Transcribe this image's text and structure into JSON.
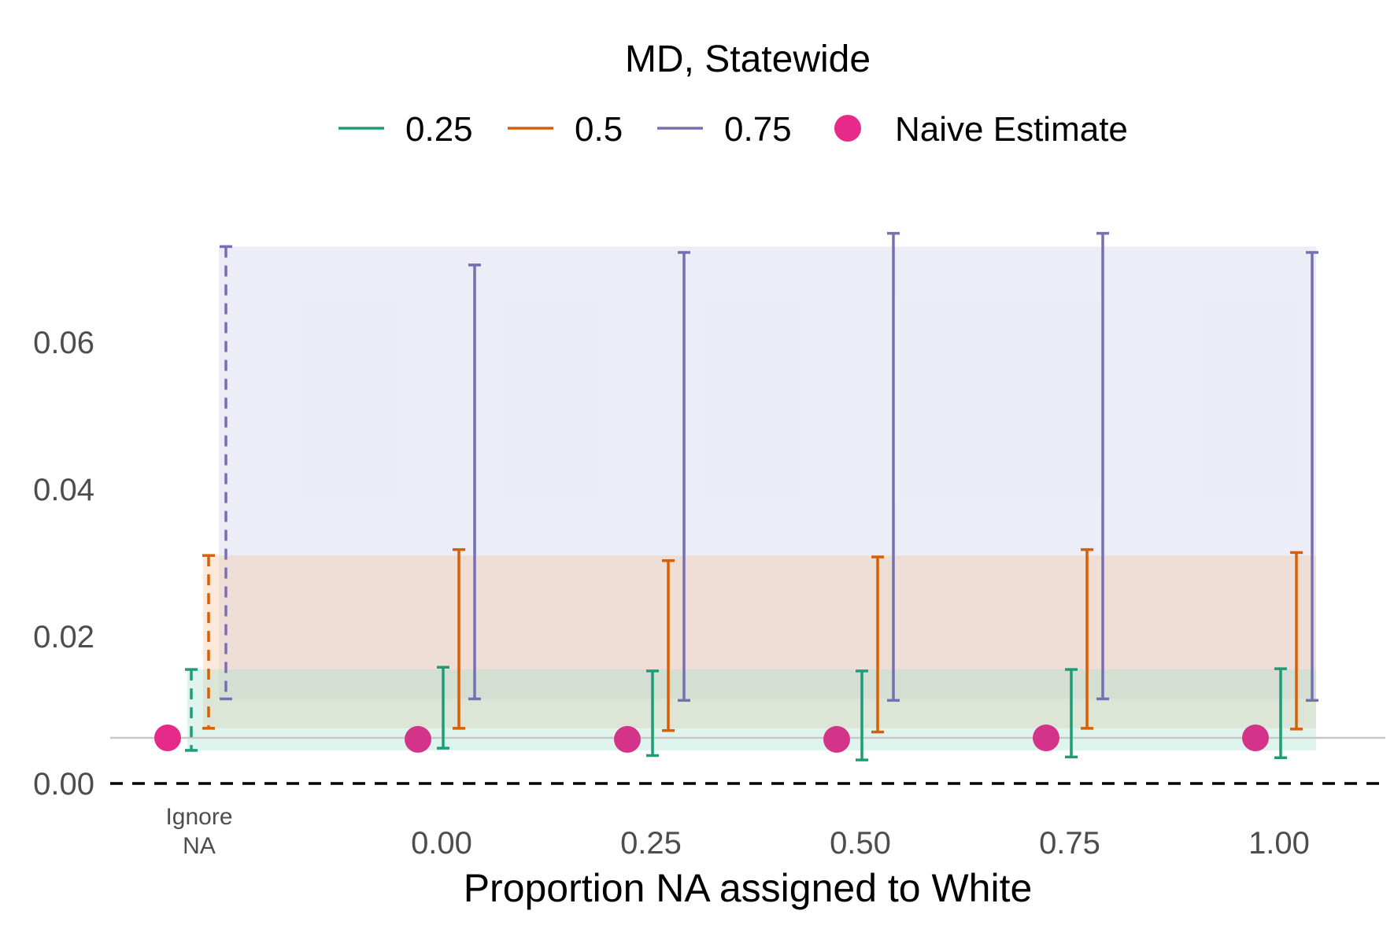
{
  "chart_data": {
    "type": "errorbar",
    "title": "MD, Statewide",
    "xlabel": "Proportion NA assigned to White",
    "ylabel": "",
    "ylim": [
      0,
      0.073
    ],
    "yticks": [
      "0.00",
      "0.02",
      "0.04",
      "0.06"
    ],
    "ytick_values": [
      0,
      0.02,
      0.04,
      0.06
    ],
    "categories": [
      "0.00",
      "0.25",
      "0.50",
      "0.75",
      "1.00"
    ],
    "category_values": [
      0,
      0.25,
      0.5,
      0.75,
      1.0
    ],
    "ignore_na_label": [
      "Ignore",
      "NA"
    ],
    "naive_estimate": 0.0062,
    "reference_lines": [
      {
        "value": 0.0062,
        "style": "solid",
        "color": "#c8c8c8"
      },
      {
        "value": 0,
        "style": "dashed",
        "color": "#000000"
      }
    ],
    "legend": {
      "placement": "top",
      "items": [
        {
          "label": "0.25",
          "color": "#1b9e77",
          "shape": "line"
        },
        {
          "label": "0.5",
          "color": "#d95f02",
          "shape": "line"
        },
        {
          "label": "0.75",
          "color": "#7570b3",
          "shape": "line"
        },
        {
          "label": "Naive Estimate",
          "color": "#e7298a",
          "shape": "dot"
        }
      ]
    },
    "ignore_na": {
      "naive": 0.0062,
      "series": [
        {
          "name": "0.25",
          "low": 0.0045,
          "high": 0.0155
        },
        {
          "name": "0.5",
          "low": 0.0075,
          "high": 0.031
        },
        {
          "name": "0.75",
          "low": 0.0115,
          "high": 0.073
        }
      ]
    },
    "series": [
      {
        "name": "0.25",
        "color": "#1b9e77",
        "low": [
          0.0048,
          0.0038,
          0.0032,
          0.0036,
          0.0035
        ],
        "high": [
          0.0158,
          0.0153,
          0.0153,
          0.0155,
          0.0156
        ]
      },
      {
        "name": "0.5",
        "color": "#d95f02",
        "low": [
          0.0075,
          0.0072,
          0.007,
          0.0075,
          0.0074
        ],
        "high": [
          0.0318,
          0.0303,
          0.0308,
          0.0318,
          0.0314
        ]
      },
      {
        "name": "0.75",
        "color": "#7570b3",
        "low": [
          0.0115,
          0.0113,
          0.0113,
          0.0115,
          0.0113
        ],
        "high": [
          0.0705,
          0.0722,
          0.0748,
          0.0748,
          0.0722
        ]
      }
    ],
    "naive_points": [
      0.006,
      0.006,
      0.006,
      0.0062,
      0.0062
    ],
    "bands": [
      {
        "name": "0.75",
        "color": "#c9cae6",
        "opacity": 0.35,
        "low": 0.0115,
        "high": 0.073
      },
      {
        "name": "0.5",
        "color": "#f5c8a8",
        "opacity": 0.4,
        "low": 0.0075,
        "high": 0.031
      },
      {
        "name": "0.25",
        "color": "#a6e0cf",
        "opacity": 0.35,
        "low": 0.0045,
        "high": 0.0155
      }
    ]
  }
}
